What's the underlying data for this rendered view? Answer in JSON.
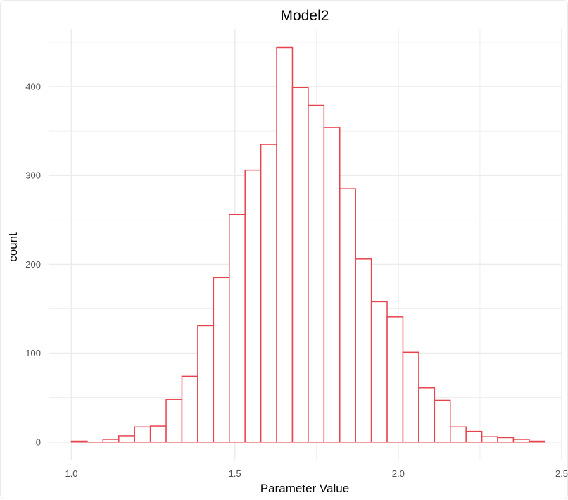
{
  "chart_data": {
    "type": "bar",
    "title": "Model2",
    "xlabel": "Parameter Value",
    "ylabel": "count",
    "xlim": [
      0.93,
      2.5
    ],
    "ylim": [
      -20,
      465
    ],
    "x_ticks": [
      1.0,
      1.5,
      2.0,
      2.5
    ],
    "x_tick_labels": [
      "1.0",
      "1.5",
      "2.0",
      "2.5"
    ],
    "y_ticks": [
      0,
      100,
      200,
      300,
      400
    ],
    "y_tick_labels": [
      "0",
      "100",
      "200",
      "300",
      "400"
    ],
    "bin_width": 0.0483,
    "bin_starts": [
      1.0,
      1.0483,
      1.0966,
      1.1449,
      1.1932,
      1.2415,
      1.2898,
      1.3381,
      1.3864,
      1.4347,
      1.483,
      1.5313,
      1.5796,
      1.6279,
      1.6762,
      1.7245,
      1.7728,
      1.8211,
      1.8694,
      1.9177,
      1.966,
      2.0143,
      2.0626,
      2.1109,
      2.1592,
      2.2075,
      2.2558,
      2.3041,
      2.3524,
      2.4007
    ],
    "values": [
      1,
      0,
      3,
      7,
      17,
      18,
      48,
      74,
      131,
      185,
      256,
      306,
      335,
      444,
      399,
      379,
      354,
      285,
      206,
      158,
      141,
      101,
      61,
      47,
      17,
      12,
      6,
      5,
      3,
      1
    ],
    "grid": true,
    "bar_outline_color": "#e8424d",
    "bar_fill_color": "#ffffff",
    "grid_color": "#ebebeb"
  }
}
